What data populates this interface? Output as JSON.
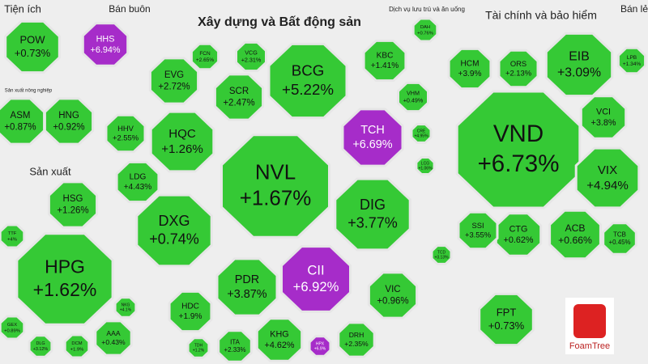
{
  "chart_data": {
    "type": "treemap",
    "logo": "FoamTree",
    "groups": [
      {
        "name": "Tiện ích",
        "labels": [
          "POW"
        ],
        "values": [
          0.73
        ],
        "value_labels": [
          "+0.73%"
        ],
        "colors": [
          "#35c935"
        ]
      },
      {
        "name": "Bán buôn",
        "labels": [
          "HHS"
        ],
        "values": [
          6.94
        ],
        "value_labels": [
          "+6.94%"
        ],
        "colors": [
          "#a62cc9"
        ]
      },
      {
        "name": "Sản xuất nông nghiệp",
        "labels": [
          "ASM",
          "HNG"
        ],
        "values": [
          0.87,
          0.92
        ],
        "value_labels": [
          "+0.87%",
          "+0.92%"
        ],
        "colors": [
          "#35c935",
          "#35c935"
        ]
      },
      {
        "name": "Sản xuất",
        "labels": [
          "HPG",
          "HSG",
          "TTF",
          "GEX",
          "DLG",
          "DCM",
          "AAA",
          "NKG"
        ],
        "values": [
          1.62,
          1.26,
          4,
          0.89,
          3.12,
          1.9,
          0.43,
          4.1
        ],
        "value_labels": [
          "+1.62%",
          "+1.26%",
          "+4%",
          "+0.89%",
          "+3.12%",
          "+1.9%",
          "+0.43%",
          "+4.1%"
        ],
        "colors": [
          "#35c935",
          "#35c935",
          "#35c935",
          "#35c935",
          "#35c935",
          "#35c935",
          "#35c935",
          "#35c935"
        ]
      },
      {
        "name": "Xây dựng và Bất động sản",
        "labels": [
          "BCG",
          "NVL",
          "TCH",
          "DIG",
          "CII",
          "DXG",
          "HQC",
          "EVG",
          "SCR",
          "KBC",
          "VHM",
          "LDG",
          "HHV",
          "PDR",
          "HDC",
          "KHG",
          "ITA",
          "DRH",
          "VIC",
          "HPX",
          "FCN",
          "VCG",
          "TDH",
          "LCG",
          "CRE",
          "TCD"
        ],
        "values": [
          5.22,
          1.67,
          6.69,
          3.77,
          6.92,
          0.74,
          1.26,
          2.72,
          2.47,
          1.41,
          0.49,
          4.43,
          2.55,
          3.87,
          1.9,
          4.62,
          2.33,
          2.35,
          0.96,
          6.9,
          2.65,
          2.31,
          1.2,
          1.06,
          4.95,
          3.13
        ],
        "value_labels": [
          "+5.22%",
          "+1.67%",
          "+6.69%",
          "+3.77%",
          "+6.92%",
          "+0.74%",
          "+1.26%",
          "+2.72%",
          "+2.47%",
          "+1.41%",
          "+0.49%",
          "+4.43%",
          "+2.55%",
          "+3.87%",
          "+1.9%",
          "+4.62%",
          "+2.33%",
          "+2.35%",
          "+0.96%",
          "+6.9%",
          "+2.65%",
          "+2.31%",
          "+1.2%",
          "+1.06%",
          "+4.95%",
          "+3.13%"
        ],
        "colors": [
          "#35c935",
          "#35c935",
          "#a62cc9",
          "#35c935",
          "#a62cc9",
          "#35c935",
          "#35c935",
          "#35c935",
          "#35c935",
          "#35c935",
          "#35c935",
          "#35c935",
          "#35c935",
          "#35c935",
          "#35c935",
          "#35c935",
          "#35c935",
          "#35c935",
          "#35c935",
          "#a62cc9",
          "#35c935",
          "#35c935",
          "#35c935",
          "#35c935",
          "#35c935",
          "#35c935"
        ]
      },
      {
        "name": "Dịch vụ lưu trú và ăn uống",
        "labels": [
          "DAH"
        ],
        "values": [
          0.76
        ],
        "value_labels": [
          "+0.76%"
        ],
        "colors": [
          "#35c935"
        ]
      },
      {
        "name": "Tài chính và bảo hiểm",
        "labels": [
          "VND",
          "EIB",
          "HCM",
          "ORS",
          "VCI",
          "VIX",
          "ACB",
          "CTG",
          "SSI",
          "TCB",
          "LPB"
        ],
        "values": [
          6.73,
          3.09,
          3.9,
          2.13,
          3.8,
          4.94,
          0.66,
          0.62,
          3.55,
          0.45,
          1.34
        ],
        "value_labels": [
          "+6.73%",
          "+3.09%",
          "+3.9%",
          "+2.13%",
          "+3.8%",
          "+4.94%",
          "+0.66%",
          "+0.62%",
          "+3.55%",
          "+0.45%",
          "+1.34%"
        ],
        "colors": [
          "#35c935",
          "#35c935",
          "#35c935",
          "#35c935",
          "#35c935",
          "#35c935",
          "#35c935",
          "#35c935",
          "#35c935",
          "#35c935",
          "#35c935"
        ]
      },
      {
        "name": "Bán lẻ",
        "labels": [],
        "values": [],
        "value_labels": [],
        "colors": []
      },
      {
        "labels": [
          "FPT"
        ],
        "values": [
          0.73
        ],
        "value_labels": [
          "+0.73%"
        ],
        "colors": [
          "#35c935"
        ]
      }
    ]
  }
}
